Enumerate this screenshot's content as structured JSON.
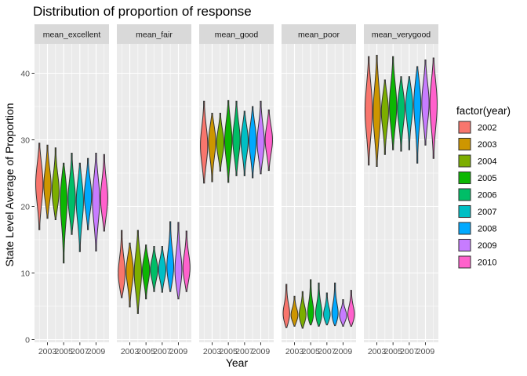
{
  "chart_data": {
    "type": "violin",
    "title": "Distribution of proportion of response",
    "xlabel": "Year",
    "ylabel": "State Level Average of Proportion",
    "ylim": [
      0,
      45
    ],
    "y_ticks": [
      0,
      10,
      20,
      30,
      40
    ],
    "x_tick_labels": [
      "2003",
      "2005",
      "2007",
      "2009"
    ],
    "x_tick_years": [
      2003,
      2005,
      2007,
      2009
    ],
    "years": [
      2002,
      2003,
      2004,
      2005,
      2006,
      2007,
      2008,
      2009,
      2010
    ],
    "grid": true,
    "legend": {
      "title": "factor(year)",
      "placement": "right",
      "entries": [
        "2002",
        "2003",
        "2004",
        "2005",
        "2006",
        "2007",
        "2008",
        "2009",
        "2010"
      ]
    },
    "colors": [
      "#F8766D",
      "#CD9600",
      "#7CAE00",
      "#0CB702",
      "#00BE67",
      "#00BFC4",
      "#00A9FF",
      "#C77CFF",
      "#FF61CC"
    ],
    "panel_background": "#EBEBEB",
    "strip_background": "#D9D9D9",
    "facets": [
      {
        "label": "mean_excellent",
        "violins": [
          {
            "year": 2002,
            "min": 16.5,
            "max": 29.5,
            "mode": 23.5
          },
          {
            "year": 2003,
            "min": 18.2,
            "max": 29.2,
            "mode": 23.0
          },
          {
            "year": 2004,
            "min": 18.0,
            "max": 28.8,
            "mode": 22.0
          },
          {
            "year": 2005,
            "min": 11.5,
            "max": 26.5,
            "mode": 21.5
          },
          {
            "year": 2006,
            "min": 15.8,
            "max": 28.0,
            "mode": 21.0
          },
          {
            "year": 2007,
            "min": 13.2,
            "max": 26.5,
            "mode": 21.0
          },
          {
            "year": 2008,
            "min": 16.5,
            "max": 27.2,
            "mode": 21.5
          },
          {
            "year": 2009,
            "min": 13.3,
            "max": 28.0,
            "mode": 21.0
          },
          {
            "year": 2010,
            "min": 16.3,
            "max": 27.8,
            "mode": 21.0
          }
        ]
      },
      {
        "label": "mean_fair",
        "violins": [
          {
            "year": 2002,
            "min": 6.3,
            "max": 16.4,
            "mode": 9.5
          },
          {
            "year": 2003,
            "min": 4.9,
            "max": 14.5,
            "mode": 10.5
          },
          {
            "year": 2004,
            "min": 3.9,
            "max": 16.4,
            "mode": 10.0
          },
          {
            "year": 2005,
            "min": 6.1,
            "max": 14.2,
            "mode": 10.5
          },
          {
            "year": 2006,
            "min": 7.2,
            "max": 14.0,
            "mode": 10.5
          },
          {
            "year": 2007,
            "min": 7.1,
            "max": 14.0,
            "mode": 10.5
          },
          {
            "year": 2008,
            "min": 7.2,
            "max": 17.7,
            "mode": 10.5
          },
          {
            "year": 2009,
            "min": 6.1,
            "max": 17.6,
            "mode": 10.0
          },
          {
            "year": 2010,
            "min": 7.2,
            "max": 16.3,
            "mode": 10.5
          }
        ]
      },
      {
        "label": "mean_good",
        "violins": [
          {
            "year": 2002,
            "min": 23.5,
            "max": 35.8,
            "mode": 29.0
          },
          {
            "year": 2003,
            "min": 23.7,
            "max": 34.0,
            "mode": 30.0
          },
          {
            "year": 2004,
            "min": 25.3,
            "max": 34.0,
            "mode": 29.5
          },
          {
            "year": 2005,
            "min": 23.6,
            "max": 35.9,
            "mode": 30.0
          },
          {
            "year": 2006,
            "min": 24.6,
            "max": 35.8,
            "mode": 30.0
          },
          {
            "year": 2007,
            "min": 24.6,
            "max": 34.3,
            "mode": 30.0
          },
          {
            "year": 2008,
            "min": 24.3,
            "max": 35.0,
            "mode": 30.0
          },
          {
            "year": 2009,
            "min": 24.9,
            "max": 35.8,
            "mode": 29.5
          },
          {
            "year": 2010,
            "min": 25.4,
            "max": 34.5,
            "mode": 30.0
          }
        ]
      },
      {
        "label": "mean_poor",
        "violins": [
          {
            "year": 2002,
            "min": 1.8,
            "max": 8.3,
            "mode": 3.5
          },
          {
            "year": 2003,
            "min": 2.0,
            "max": 6.5,
            "mode": 3.5
          },
          {
            "year": 2004,
            "min": 1.7,
            "max": 7.2,
            "mode": 3.5
          },
          {
            "year": 2005,
            "min": 2.2,
            "max": 9.0,
            "mode": 3.5
          },
          {
            "year": 2006,
            "min": 2.0,
            "max": 8.5,
            "mode": 3.5
          },
          {
            "year": 2007,
            "min": 2.2,
            "max": 7.0,
            "mode": 3.5
          },
          {
            "year": 2008,
            "min": 2.1,
            "max": 8.5,
            "mode": 3.5
          },
          {
            "year": 2009,
            "min": 2.0,
            "max": 6.0,
            "mode": 3.5
          },
          {
            "year": 2010,
            "min": 2.0,
            "max": 7.4,
            "mode": 3.5
          }
        ]
      },
      {
        "label": "mean_verygood",
        "violins": [
          {
            "year": 2002,
            "min": 26.2,
            "max": 42.5,
            "mode": 34.5
          },
          {
            "year": 2003,
            "min": 26.0,
            "max": 42.7,
            "mode": 34.0
          },
          {
            "year": 2004,
            "min": 27.8,
            "max": 39.0,
            "mode": 34.5
          },
          {
            "year": 2005,
            "min": 28.5,
            "max": 42.5,
            "mode": 35.0
          },
          {
            "year": 2006,
            "min": 28.3,
            "max": 39.5,
            "mode": 35.0
          },
          {
            "year": 2007,
            "min": 28.5,
            "max": 39.5,
            "mode": 35.5
          },
          {
            "year": 2008,
            "min": 26.5,
            "max": 41.0,
            "mode": 36.0
          },
          {
            "year": 2009,
            "min": 29.2,
            "max": 42.0,
            "mode": 35.5
          },
          {
            "year": 2010,
            "min": 27.2,
            "max": 42.3,
            "mode": 35.5
          }
        ]
      }
    ]
  }
}
